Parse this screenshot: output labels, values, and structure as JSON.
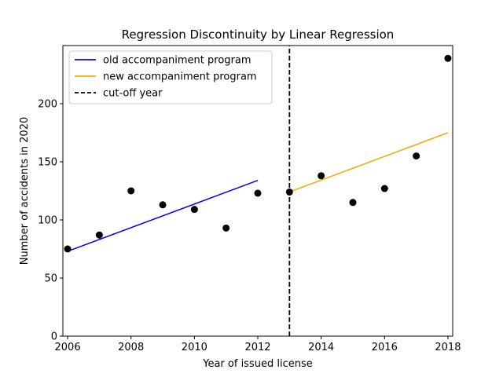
{
  "chart_data": {
    "type": "scatter",
    "title": "Regression Discontinuity by Linear Regression",
    "xlabel": "Year of issued license",
    "ylabel": "Number of accidents in 2020",
    "xlim": [
      2005.85,
      2018.15
    ],
    "ylim": [
      0,
      250
    ],
    "xticks": [
      2006,
      2008,
      2010,
      2012,
      2014,
      2016,
      2018
    ],
    "yticks": [
      0,
      50,
      100,
      150,
      200
    ],
    "grid": false,
    "legend_position": "top-left",
    "points": {
      "x": [
        2006,
        2007,
        2008,
        2009,
        2010,
        2011,
        2012,
        2013,
        2014,
        2015,
        2016,
        2017,
        2018
      ],
      "y": [
        75,
        87,
        125,
        113,
        109,
        93,
        123,
        124,
        138,
        115,
        127,
        155,
        239
      ],
      "color": "#000000"
    },
    "series": [
      {
        "name": "old accompaniment program",
        "x": [
          2006,
          2012
        ],
        "y": [
          73,
          134
        ],
        "color": "#0000ff",
        "style": "solid"
      },
      {
        "name": "new accompaniment program",
        "x": [
          2013,
          2018
        ],
        "y": [
          124,
          175
        ],
        "color": "#ffa500",
        "style": "solid"
      },
      {
        "name": "cut-off year",
        "x": [
          2013,
          2013
        ],
        "y": [
          0,
          250
        ],
        "color": "#000000",
        "style": "dashed"
      }
    ]
  }
}
